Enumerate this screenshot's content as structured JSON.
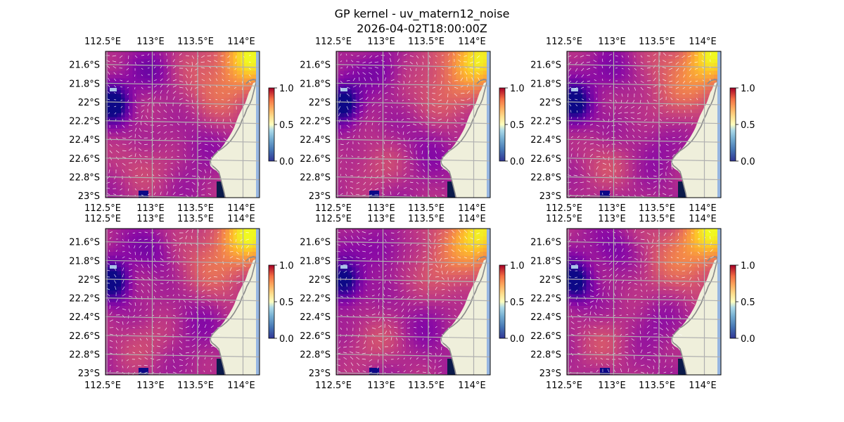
{
  "figure": {
    "title": "GP kernel - uv_matern12_noise",
    "subtitle": "2026-04-02T18:00:00Z"
  },
  "map": {
    "lon_ticks": [
      "112.5°E",
      "113°E",
      "113.5°E",
      "114°E"
    ],
    "lat_ticks": [
      "21.6°S",
      "21.8°S",
      "22°S",
      "22.2°S",
      "22.4°S",
      "22.6°S",
      "22.8°S",
      "23°S"
    ],
    "gridlines": true,
    "land_color": "#efefdb",
    "ocean_color": "#97b6e1",
    "coast_color": "#8a8a8a",
    "grid_color": "#b0b0b0"
  },
  "colorbar": {
    "ticks": [
      "0.0",
      "0.5",
      "1.0"
    ],
    "colormap": "RdYlBu_r",
    "range": [
      0,
      1
    ]
  },
  "field_colormap": "plasma",
  "panels": [
    {
      "id": "p1",
      "variant": 1
    },
    {
      "id": "p2",
      "variant": 2
    },
    {
      "id": "p3",
      "variant": 3
    },
    {
      "id": "p4",
      "variant": 4
    },
    {
      "id": "p5",
      "variant": 5
    },
    {
      "id": "p6",
      "variant": 6
    }
  ]
}
